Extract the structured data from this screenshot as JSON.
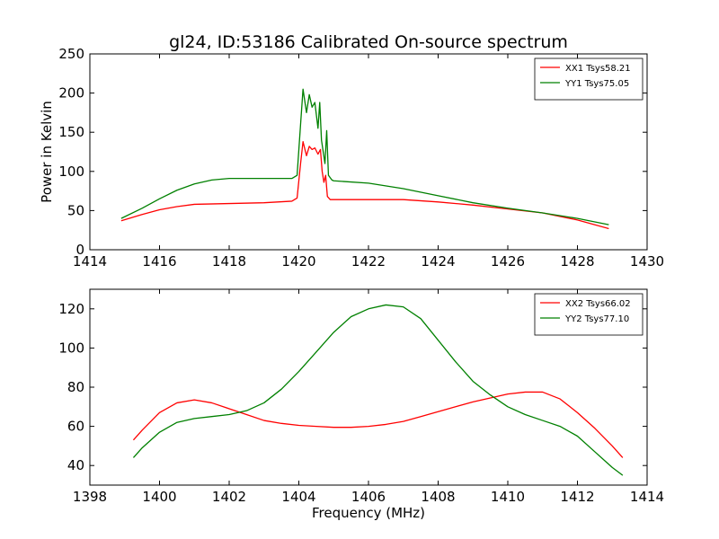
{
  "title": "gl24, ID:53186 Calibrated On-source spectrum",
  "colors": {
    "red": "#ff0000",
    "green": "#008000"
  },
  "chart_data": [
    {
      "type": "line",
      "title": "gl24, ID:53186 Calibrated On-source spectrum",
      "xlabel": "",
      "ylabel": "Power in Kelvin",
      "xlim": [
        1414,
        1430
      ],
      "ylim": [
        0,
        250
      ],
      "xticks": [
        1414,
        1416,
        1418,
        1420,
        1422,
        1424,
        1426,
        1428,
        1430
      ],
      "yticks": [
        0,
        50,
        100,
        150,
        200,
        250
      ],
      "legend_position": "top-right",
      "series": [
        {
          "name": "XX1 Tsys58.21",
          "color": "#ff0000",
          "x": [
            1414.9,
            1415.5,
            1416.0,
            1416.5,
            1417.0,
            1418.0,
            1419.0,
            1419.8,
            1419.95,
            1420.05,
            1420.12,
            1420.22,
            1420.3,
            1420.38,
            1420.46,
            1420.55,
            1420.62,
            1420.67,
            1420.72,
            1420.77,
            1420.82,
            1420.9,
            1421.0,
            1422.0,
            1423.0,
            1424.0,
            1425.0,
            1426.0,
            1427.0,
            1428.0,
            1428.9
          ],
          "y": [
            37,
            45,
            51,
            55,
            58,
            59,
            60,
            62,
            66,
            110,
            138,
            120,
            132,
            128,
            130,
            122,
            128,
            100,
            86,
            95,
            68,
            64,
            64,
            64,
            64,
            61,
            57,
            52,
            47,
            38,
            27
          ]
        },
        {
          "name": "YY1 Tsys75.05",
          "color": "#008000",
          "x": [
            1414.9,
            1415.5,
            1416.0,
            1416.5,
            1417.0,
            1417.5,
            1418.0,
            1419.0,
            1419.8,
            1419.95,
            1420.05,
            1420.12,
            1420.22,
            1420.3,
            1420.38,
            1420.46,
            1420.55,
            1420.6,
            1420.65,
            1420.7,
            1420.75,
            1420.8,
            1420.85,
            1420.95,
            1421.0,
            1422.0,
            1423.0,
            1424.0,
            1425.0,
            1426.0,
            1427.0,
            1428.0,
            1428.9
          ],
          "y": [
            40,
            53,
            65,
            76,
            84,
            89,
            91,
            91,
            91,
            95,
            160,
            205,
            175,
            198,
            182,
            188,
            155,
            188,
            140,
            125,
            110,
            152,
            95,
            89,
            88,
            85,
            78,
            69,
            60,
            53,
            47,
            40,
            32
          ]
        }
      ]
    },
    {
      "type": "line",
      "title": "",
      "xlabel": "Frequency (MHz)",
      "ylabel": "",
      "xlim": [
        1398,
        1414
      ],
      "ylim": [
        30,
        130
      ],
      "xticks": [
        1398,
        1400,
        1402,
        1404,
        1406,
        1408,
        1410,
        1412,
        1414
      ],
      "yticks": [
        40,
        60,
        80,
        100,
        120
      ],
      "legend_position": "top-right",
      "series": [
        {
          "name": "XX2 Tsys66.02",
          "color": "#ff0000",
          "x": [
            1399.25,
            1399.5,
            1400.0,
            1400.5,
            1401.0,
            1401.5,
            1402.0,
            1402.5,
            1403.0,
            1403.5,
            1404.0,
            1404.5,
            1405.0,
            1405.5,
            1406.0,
            1406.5,
            1407.0,
            1407.5,
            1408.0,
            1408.5,
            1409.0,
            1409.5,
            1410.0,
            1410.5,
            1411.0,
            1411.5,
            1412.0,
            1412.5,
            1413.0,
            1413.3
          ],
          "y": [
            53,
            58,
            67,
            72,
            73.5,
            72,
            69,
            66,
            63,
            61.5,
            60.5,
            60,
            59.5,
            59.5,
            60,
            61,
            62.5,
            65,
            67.5,
            70,
            72.5,
            74.5,
            76.5,
            77.5,
            77.5,
            74,
            67,
            59,
            50,
            44
          ]
        },
        {
          "name": "YY2 Tsys77.10",
          "color": "#008000",
          "x": [
            1399.25,
            1399.5,
            1400.0,
            1400.5,
            1401.0,
            1401.5,
            1402.0,
            1402.5,
            1403.0,
            1403.5,
            1404.0,
            1404.5,
            1405.0,
            1405.5,
            1406.0,
            1406.5,
            1407.0,
            1407.5,
            1408.0,
            1408.5,
            1409.0,
            1409.5,
            1410.0,
            1410.5,
            1411.0,
            1411.5,
            1412.0,
            1412.5,
            1413.0,
            1413.3
          ],
          "y": [
            44,
            49,
            57,
            62,
            64,
            65,
            66,
            68,
            72,
            79,
            88,
            98,
            108,
            116,
            120,
            122,
            121,
            115,
            104,
            93,
            83,
            76,
            70,
            66,
            63,
            60,
            55,
            47,
            39,
            35
          ]
        }
      ]
    }
  ]
}
